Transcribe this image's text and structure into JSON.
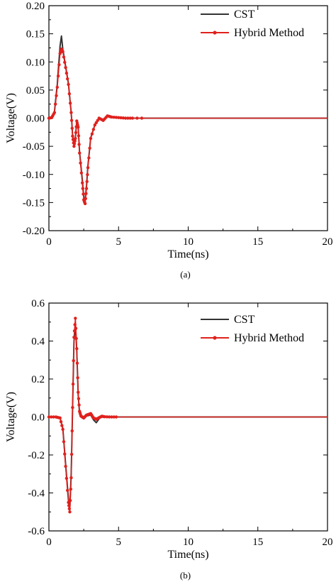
{
  "chart_data": [
    {
      "type": "line",
      "caption": "(a)",
      "xlabel": "Time(ns)",
      "ylabel": "Voltage(V)",
      "xlim": [
        0,
        20
      ],
      "ylim": [
        -0.2,
        0.2
      ],
      "xticks": [
        0,
        5,
        10,
        15,
        20
      ],
      "yticks": [
        -0.2,
        -0.15,
        -0.1,
        -0.05,
        0.0,
        0.05,
        0.1,
        0.15,
        0.2
      ],
      "ytick_labels": [
        "-0.20",
        "-0.15",
        "-0.10",
        "-0.05",
        "0.00",
        "0.05",
        "0.10",
        "0.15",
        "0.20"
      ],
      "legend_position": "top-right",
      "series": [
        {
          "name": "CST",
          "color": "#333333",
          "marker": "none",
          "x": [
            0,
            0.2,
            0.4,
            0.6,
            0.8,
            0.9,
            1.0,
            1.2,
            1.4,
            1.6,
            1.7,
            1.8,
            1.9,
            2.0,
            2.1,
            2.2,
            2.4,
            2.5,
            2.6,
            2.7,
            2.8,
            3.0,
            3.3,
            3.6,
            3.9,
            4.2,
            4.5,
            5.0,
            5.5,
            6.0,
            7,
            8,
            9,
            10,
            11,
            12,
            13,
            14,
            15,
            16,
            17,
            18,
            19,
            20
          ],
          "y": [
            0,
            0.001,
            0.012,
            0.06,
            0.128,
            0.146,
            0.122,
            0.092,
            0.062,
            0.01,
            -0.03,
            -0.048,
            -0.035,
            -0.005,
            -0.015,
            -0.06,
            -0.11,
            -0.14,
            -0.146,
            -0.12,
            -0.085,
            -0.035,
            -0.012,
            0.0,
            -0.004,
            0.004,
            0.002,
            0.001,
            0,
            0,
            0,
            0,
            0,
            0,
            0,
            0,
            0,
            0,
            0,
            0,
            0,
            0,
            0,
            0
          ]
        },
        {
          "name": "Hybrid Method",
          "color": "#e0211d",
          "marker": "circle",
          "x": [
            0,
            0.2,
            0.4,
            0.6,
            0.8,
            0.9,
            1.0,
            1.2,
            1.4,
            1.6,
            1.7,
            1.8,
            1.9,
            2.0,
            2.1,
            2.2,
            2.4,
            2.5,
            2.6,
            2.7,
            2.8,
            3.0,
            3.3,
            3.6,
            3.9,
            4.2,
            4.5,
            5.0,
            5.5,
            6.0,
            7,
            8,
            9,
            10,
            11,
            12,
            13,
            14,
            15,
            16,
            17,
            18,
            19,
            20
          ],
          "y": [
            0,
            0.001,
            0.01,
            0.055,
            0.115,
            0.123,
            0.118,
            0.09,
            0.06,
            0.01,
            -0.032,
            -0.05,
            -0.036,
            -0.005,
            -0.016,
            -0.062,
            -0.115,
            -0.145,
            -0.152,
            -0.125,
            -0.088,
            -0.036,
            -0.012,
            0.0,
            -0.004,
            0.004,
            0.002,
            0.001,
            0,
            0,
            0,
            0,
            0,
            0,
            0,
            0,
            0,
            0,
            0,
            0,
            0,
            0,
            0,
            0
          ]
        }
      ]
    },
    {
      "type": "line",
      "caption": "(b)",
      "xlabel": "Time(ns)",
      "ylabel": "Voltage(V)",
      "xlim": [
        0,
        20
      ],
      "ylim": [
        -0.6,
        0.6
      ],
      "xticks": [
        0,
        5,
        10,
        15,
        20
      ],
      "yticks": [
        -0.6,
        -0.4,
        -0.2,
        0.0,
        0.2,
        0.4,
        0.6
      ],
      "ytick_labels": [
        "-0.6",
        "-0.4",
        "-0.2",
        "0.0",
        "0.2",
        "0.4",
        "0.6"
      ],
      "legend_position": "top-right",
      "series": [
        {
          "name": "CST",
          "color": "#333333",
          "marker": "none",
          "x": [
            0,
            0.5,
            0.8,
            1.0,
            1.2,
            1.4,
            1.5,
            1.6,
            1.7,
            1.8,
            1.9,
            2.0,
            2.1,
            2.2,
            2.3,
            2.5,
            2.7,
            3.0,
            3.2,
            3.4,
            3.6,
            3.8,
            4.0,
            4.5,
            5.0,
            6,
            7,
            8,
            9,
            10,
            11,
            12,
            13,
            14,
            15,
            16,
            17,
            18,
            19,
            20
          ],
          "y": [
            0,
            0,
            -0.005,
            -0.06,
            -0.25,
            -0.43,
            -0.48,
            -0.3,
            0.05,
            0.4,
            0.49,
            0.35,
            0.12,
            0.02,
            0.0,
            -0.01,
            0.005,
            0.01,
            -0.015,
            -0.03,
            -0.01,
            0.008,
            0.002,
            0.001,
            0,
            0,
            0,
            0,
            0,
            0,
            0,
            0,
            0,
            0,
            0,
            0,
            0,
            0,
            0,
            0
          ]
        },
        {
          "name": "Hybrid Method",
          "color": "#e0211d",
          "marker": "circle",
          "x": [
            0,
            0.5,
            0.8,
            1.0,
            1.2,
            1.4,
            1.5,
            1.6,
            1.7,
            1.8,
            1.9,
            2.0,
            2.1,
            2.2,
            2.3,
            2.5,
            2.7,
            3.0,
            3.2,
            3.4,
            3.6,
            3.8,
            4.0,
            4.5,
            5.0,
            6,
            7,
            8,
            9,
            10,
            11,
            12,
            13,
            14,
            15,
            16,
            17,
            18,
            19,
            20
          ],
          "y": [
            0,
            0,
            -0.005,
            -0.065,
            -0.26,
            -0.45,
            -0.5,
            -0.32,
            0.05,
            0.42,
            0.52,
            0.36,
            0.13,
            0.03,
            0.005,
            -0.005,
            0.01,
            0.018,
            -0.005,
            -0.012,
            -0.004,
            0.004,
            0.001,
            0.0,
            0,
            0,
            0,
            0,
            0,
            0,
            0,
            0,
            0,
            0,
            0,
            0,
            0,
            0,
            0,
            0
          ]
        }
      ]
    }
  ]
}
